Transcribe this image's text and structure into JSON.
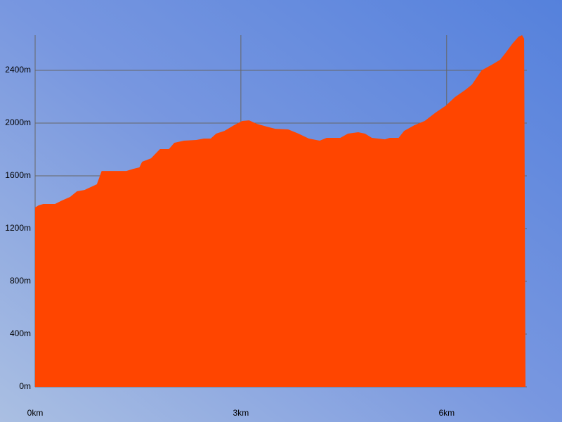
{
  "chart_data": {
    "type": "area",
    "x": [
      0,
      0.05,
      0.12,
      0.29,
      0.39,
      0.51,
      0.61,
      0.72,
      0.9,
      0.97,
      1.33,
      1.43,
      1.52,
      1.56,
      1.69,
      1.82,
      1.95,
      2.03,
      2.17,
      2.35,
      2.46,
      2.56,
      2.64,
      2.76,
      2.9,
      3.02,
      3.12,
      3.23,
      3.38,
      3.5,
      3.69,
      3.84,
      3.99,
      4.15,
      4.25,
      4.45,
      4.56,
      4.71,
      4.81,
      4.91,
      5.1,
      5.17,
      5.3,
      5.38,
      5.53,
      5.68,
      5.84,
      5.99,
      6.12,
      6.27,
      6.37,
      6.51,
      6.66,
      6.78,
      6.86,
      6.96,
      7.05,
      7.1,
      7.13,
      7.15
    ],
    "values": [
      1360,
      1376,
      1387,
      1387,
      1413,
      1440,
      1483,
      1493,
      1536,
      1637,
      1637,
      1653,
      1664,
      1707,
      1733,
      1803,
      1803,
      1851,
      1867,
      1872,
      1883,
      1883,
      1920,
      1941,
      1984,
      2016,
      2021,
      1995,
      1973,
      1957,
      1952,
      1920,
      1883,
      1867,
      1888,
      1888,
      1920,
      1931,
      1920,
      1888,
      1877,
      1888,
      1888,
      1941,
      1984,
      2016,
      2080,
      2133,
      2197,
      2251,
      2293,
      2400,
      2443,
      2480,
      2533,
      2603,
      2656,
      2667,
      2640,
      0
    ],
    "color": "#ff4500",
    "xlim": [
      0,
      7.17
    ],
    "ylim": [
      0,
      2667
    ],
    "xticks": [
      {
        "value": 0,
        "label": "0km"
      },
      {
        "value": 3,
        "label": "3km"
      },
      {
        "value": 6,
        "label": "6km"
      }
    ],
    "yticks": [
      {
        "value": 0,
        "label": "0m"
      },
      {
        "value": 400,
        "label": "400m"
      },
      {
        "value": 800,
        "label": "800m"
      },
      {
        "value": 1200,
        "label": "1200m"
      },
      {
        "value": 1600,
        "label": "1600m"
      },
      {
        "value": 2000,
        "label": "2000m"
      },
      {
        "value": 2400,
        "label": "2400m"
      }
    ],
    "grid": true
  }
}
